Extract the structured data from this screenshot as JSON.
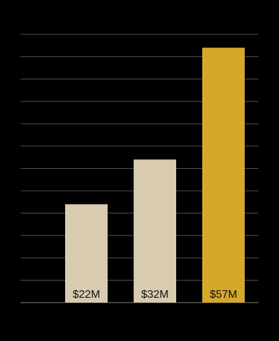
{
  "chart_data": {
    "type": "bar",
    "categories": [
      null,
      null,
      null
    ],
    "values": [
      22,
      32,
      57
    ],
    "value_labels": [
      "$22M",
      "$32M",
      "$57M"
    ],
    "colors": [
      "#d9cbb0",
      "#d9cbb0",
      "#d4a82a"
    ],
    "ylim": [
      0,
      60
    ],
    "yticks": [
      0,
      5,
      10,
      15,
      20,
      25,
      30,
      35,
      40,
      45,
      50,
      55,
      60
    ],
    "grid": true
  }
}
